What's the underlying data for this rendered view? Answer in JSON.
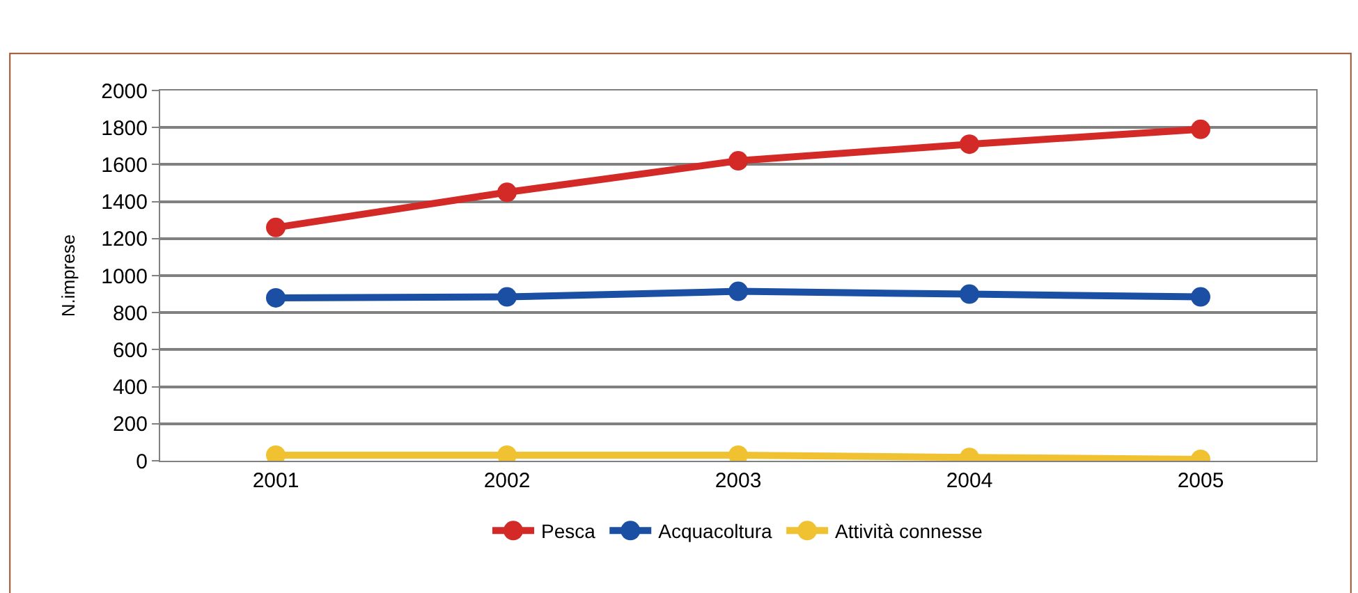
{
  "chart_data": {
    "type": "line",
    "ylabel": "N.imprese",
    "categories": [
      "2001",
      "2002",
      "2003",
      "2004",
      "2005"
    ],
    "series": [
      {
        "name": "Pesca",
        "color": "#d42a27",
        "values": [
          1260,
          1450,
          1620,
          1710,
          1790
        ]
      },
      {
        "name": "Acquacoltura",
        "color": "#1b4fa3",
        "values": [
          880,
          885,
          915,
          900,
          885
        ]
      },
      {
        "name": "Attività connesse",
        "color": "#f0c232",
        "values": [
          30,
          30,
          30,
          18,
          8
        ]
      }
    ],
    "ylim": [
      0,
      2000
    ],
    "yticks": [
      0,
      200,
      400,
      600,
      800,
      1000,
      1200,
      1400,
      1600,
      1800,
      2000
    ],
    "grid": "y",
    "legend": "bottom",
    "marker": "circle",
    "line_style": "solid"
  }
}
